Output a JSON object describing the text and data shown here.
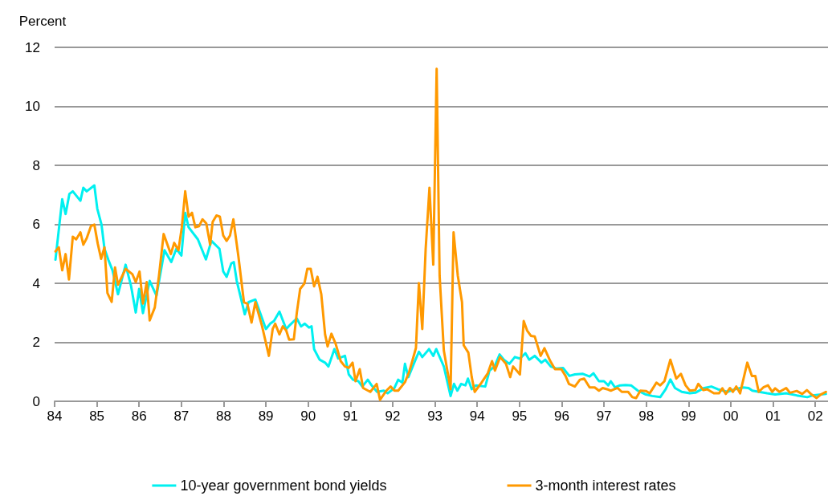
{
  "chart_data": {
    "type": "line",
    "ylabel": "Percent",
    "xlim": [
      1984,
      2002.3
    ],
    "ylim": [
      0,
      12
    ],
    "yticks": [
      0,
      2,
      4,
      6,
      8,
      10,
      12
    ],
    "xticks": [
      {
        "value": 1984,
        "label": "84"
      },
      {
        "value": 1985,
        "label": "85"
      },
      {
        "value": 1986,
        "label": "86"
      },
      {
        "value": 1987,
        "label": "87"
      },
      {
        "value": 1988,
        "label": "88"
      },
      {
        "value": 1989,
        "label": "89"
      },
      {
        "value": 1990,
        "label": "90"
      },
      {
        "value": 1991,
        "label": "91"
      },
      {
        "value": 1992,
        "label": "92"
      },
      {
        "value": 1993,
        "label": "93"
      },
      {
        "value": 1994,
        "label": "94"
      },
      {
        "value": 1995,
        "label": "95"
      },
      {
        "value": 1996,
        "label": "96"
      },
      {
        "value": 1997,
        "label": "97"
      },
      {
        "value": 1998,
        "label": "98"
      },
      {
        "value": 1999,
        "label": "99"
      },
      {
        "value": 2000,
        "label": "00"
      },
      {
        "value": 2001,
        "label": "01"
      },
      {
        "value": 2002,
        "label": "02"
      }
    ],
    "grid": "y",
    "legend": "bottom",
    "series": [
      {
        "name": "10-year government bond yields",
        "color": "#00f0f0",
        "x": [
          1984.02,
          1984.18,
          1984.26,
          1984.35,
          1984.43,
          1984.61,
          1984.68,
          1984.76,
          1984.94,
          1985.01,
          1985.11,
          1985.18,
          1985.27,
          1985.37,
          1985.5,
          1985.68,
          1985.81,
          1985.92,
          1986,
          1986.09,
          1986.25,
          1986.41,
          1986.6,
          1986.76,
          1986.88,
          1987,
          1987.09,
          1987.17,
          1987.39,
          1987.58,
          1987.71,
          1987.9,
          1987.99,
          1988.07,
          1988.18,
          1988.24,
          1988.31,
          1988.5,
          1988.59,
          1988.75,
          1989,
          1989.1,
          1989.19,
          1989.32,
          1989.48,
          1989.57,
          1989.73,
          1989.83,
          1989.92,
          1990.02,
          1990.08,
          1990.14,
          1990.27,
          1990.4,
          1990.48,
          1990.62,
          1990.71,
          1990.87,
          1990.96,
          1991.06,
          1991.19,
          1991.28,
          1991.41,
          1991.5,
          1991.63,
          1991.79,
          1991.88,
          1992.04,
          1992.13,
          1992.23,
          1992.29,
          1992.37,
          1992.51,
          1992.62,
          1992.7,
          1992.86,
          1992.96,
          1993.03,
          1993.21,
          1993.37,
          1993.45,
          1993.53,
          1993.62,
          1993.72,
          1993.78,
          1993.87,
          1993.97,
          1994.19,
          1994.29,
          1994.41,
          1994.53,
          1994.63,
          1994.76,
          1994.89,
          1995.01,
          1995.14,
          1995.23,
          1995.36,
          1995.52,
          1995.61,
          1995.74,
          1995.87,
          1996.03,
          1996.18,
          1996.31,
          1996.5,
          1996.66,
          1996.75,
          1996.88,
          1997,
          1997.1,
          1997.16,
          1997.26,
          1997.38,
          1997.51,
          1997.64,
          1997.8,
          1997.99,
          1998.14,
          1998.33,
          1998.46,
          1998.57,
          1998.68,
          1998.84,
          1999.03,
          1999.16,
          1999.35,
          1999.54,
          1999.69,
          1999.92,
          2000.1,
          2000.29,
          2000.42,
          2000.51,
          2000.67,
          2000.86,
          2001.05,
          2001.31,
          2001.56,
          2001.81,
          2001.94,
          2002.25
        ],
        "values": [
          4.8,
          6.85,
          6.35,
          7.03,
          7.12,
          6.8,
          7.24,
          7.12,
          7.32,
          6.53,
          5.99,
          5.17,
          4.8,
          4.44,
          3.63,
          4.63,
          3.9,
          3.01,
          3.81,
          2.99,
          4.08,
          3.58,
          5.12,
          4.72,
          5.17,
          4.94,
          6.39,
          5.9,
          5.49,
          4.81,
          5.44,
          5.17,
          4.4,
          4.22,
          4.67,
          4.72,
          4.08,
          2.95,
          3.36,
          3.45,
          2.45,
          2.63,
          2.72,
          3.04,
          2.45,
          2.59,
          2.81,
          2.54,
          2.63,
          2.5,
          2.54,
          1.77,
          1.41,
          1.31,
          1.18,
          1.77,
          1.45,
          1.54,
          0.91,
          0.73,
          0.68,
          0.5,
          0.73,
          0.54,
          0.32,
          0.36,
          0.27,
          0.45,
          0.73,
          0.63,
          1.27,
          0.82,
          1.31,
          1.68,
          1.5,
          1.77,
          1.54,
          1.77,
          1.18,
          0.18,
          0.59,
          0.36,
          0.59,
          0.54,
          0.77,
          0.41,
          0.54,
          0.5,
          1.04,
          1.18,
          1.59,
          1.41,
          1.27,
          1.5,
          1.45,
          1.63,
          1.41,
          1.54,
          1.31,
          1.41,
          1.18,
          1.11,
          1.13,
          0.86,
          0.91,
          0.93,
          0.84,
          0.95,
          0.68,
          0.68,
          0.54,
          0.68,
          0.47,
          0.54,
          0.55,
          0.54,
          0.36,
          0.23,
          0.18,
          0.14,
          0.41,
          0.74,
          0.45,
          0.32,
          0.27,
          0.29,
          0.44,
          0.5,
          0.41,
          0.32,
          0.41,
          0.47,
          0.45,
          0.36,
          0.32,
          0.27,
          0.23,
          0.27,
          0.2,
          0.14,
          0.2,
          0.25
        ]
      },
      {
        "name": "3-month interest rates",
        "color": "#ff9900",
        "x": [
          1984.02,
          1984.1,
          1984.18,
          1984.26,
          1984.34,
          1984.43,
          1984.51,
          1984.61,
          1984.68,
          1984.76,
          1984.86,
          1984.94,
          1985.02,
          1985.1,
          1985.18,
          1985.25,
          1985.35,
          1985.43,
          1985.5,
          1985.68,
          1985.84,
          1985.92,
          1986.01,
          1986.09,
          1986.18,
          1986.25,
          1986.37,
          1986.47,
          1986.58,
          1986.75,
          1986.83,
          1986.93,
          1987.01,
          1987.09,
          1987.17,
          1987.25,
          1987.33,
          1987.42,
          1987.5,
          1987.59,
          1987.68,
          1987.74,
          1987.83,
          1987.91,
          1987.99,
          1988.07,
          1988.15,
          1988.23,
          1988.35,
          1988.48,
          1988.56,
          1988.66,
          1988.75,
          1988.91,
          1989.07,
          1989.16,
          1989.22,
          1989.32,
          1989.4,
          1989.48,
          1989.55,
          1989.66,
          1989.73,
          1989.81,
          1989.91,
          1989.98,
          1990.06,
          1990.14,
          1990.22,
          1990.31,
          1990.4,
          1990.46,
          1990.55,
          1990.65,
          1990.77,
          1990.87,
          1990.96,
          1991.05,
          1991.12,
          1991.22,
          1991.3,
          1991.47,
          1991.62,
          1991.7,
          1991.85,
          1991.95,
          1992.04,
          1992.13,
          1992.29,
          1992.39,
          1992.48,
          1992.55,
          1992.62,
          1992.7,
          1992.78,
          1992.87,
          1992.96,
          1993.04,
          1993.11,
          1993.21,
          1993.37,
          1993.44,
          1993.54,
          1993.64,
          1993.68,
          1993.79,
          1993.87,
          1993.94,
          1994.1,
          1994.25,
          1994.35,
          1994.42,
          1994.54,
          1994.68,
          1994.78,
          1994.85,
          1995.01,
          1995.1,
          1995.18,
          1995.27,
          1995.36,
          1995.5,
          1995.59,
          1995.73,
          1995.84,
          1995.99,
          1996.09,
          1996.17,
          1996.31,
          1996.43,
          1996.53,
          1996.66,
          1996.78,
          1996.88,
          1996.97,
          1997.07,
          1997.16,
          1997.32,
          1997.42,
          1997.57,
          1997.67,
          1997.76,
          1997.86,
          1997.99,
          1998.08,
          1998.24,
          1998.33,
          1998.43,
          1998.57,
          1998.71,
          1998.82,
          1998.93,
          1999.03,
          1999.16,
          1999.23,
          1999.35,
          1999.44,
          1999.6,
          1999.72,
          1999.8,
          1999.88,
          1999.98,
          2000.05,
          2000.13,
          2000.22,
          2000.39,
          2000.5,
          2000.58,
          2000.66,
          2000.77,
          2000.88,
          2000.98,
          2001.05,
          2001.15,
          2001.31,
          2001.4,
          2001.56,
          2001.69,
          2001.8,
          2001.91,
          2002.03,
          2002.13,
          2002.25
        ],
        "values": [
          5.08,
          5.22,
          4.44,
          4.99,
          4.13,
          5.58,
          5.49,
          5.73,
          5.31,
          5.53,
          5.94,
          5.99,
          5.35,
          4.83,
          5.22,
          3.67,
          3.37,
          4.54,
          3.95,
          4.49,
          4.31,
          4.04,
          4.4,
          3.31,
          4.04,
          2.74,
          3.18,
          4.26,
          5.67,
          4.99,
          5.37,
          5.12,
          5.9,
          7.12,
          6.26,
          6.39,
          5.9,
          5.94,
          6.17,
          6.03,
          5.31,
          6.08,
          6.3,
          6.26,
          5.62,
          5.44,
          5.62,
          6.17,
          4.9,
          3.36,
          3.31,
          2.67,
          3.36,
          2.54,
          1.54,
          2.45,
          2.63,
          2.27,
          2.54,
          2.4,
          2.09,
          2.1,
          2.99,
          3.81,
          3.99,
          4.49,
          4.49,
          3.9,
          4.22,
          3.63,
          2.27,
          1.86,
          2.29,
          1.95,
          1.36,
          1.18,
          1.13,
          1.31,
          0.68,
          1.09,
          0.45,
          0.32,
          0.59,
          0.05,
          0.36,
          0.5,
          0.36,
          0.36,
          0.65,
          1.0,
          1.45,
          1.81,
          4.01,
          2.45,
          5.17,
          7.24,
          4.63,
          11.27,
          4.26,
          1.72,
          0.41,
          5.73,
          4.26,
          3.36,
          1.9,
          1.65,
          0.82,
          0.32,
          0.63,
          0.95,
          1.36,
          1.04,
          1.5,
          1.27,
          0.82,
          1.18,
          0.91,
          2.72,
          2.4,
          2.22,
          2.2,
          1.54,
          1.8,
          1.36,
          1.09,
          1.09,
          0.86,
          0.59,
          0.5,
          0.73,
          0.77,
          0.47,
          0.47,
          0.36,
          0.45,
          0.41,
          0.36,
          0.45,
          0.32,
          0.32,
          0.14,
          0.11,
          0.36,
          0.35,
          0.27,
          0.63,
          0.54,
          0.68,
          1.41,
          0.77,
          0.93,
          0.54,
          0.36,
          0.38,
          0.59,
          0.38,
          0.41,
          0.27,
          0.27,
          0.44,
          0.25,
          0.45,
          0.32,
          0.5,
          0.27,
          1.31,
          0.86,
          0.86,
          0.32,
          0.47,
          0.54,
          0.32,
          0.44,
          0.32,
          0.45,
          0.29,
          0.35,
          0.25,
          0.38,
          0.23,
          0.11,
          0.23,
          0.32
        ]
      }
    ]
  }
}
